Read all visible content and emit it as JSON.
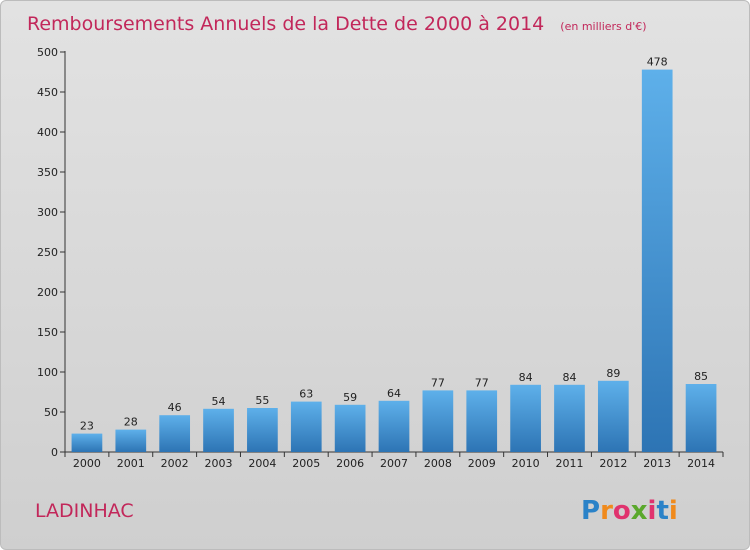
{
  "chart_data": {
    "type": "bar",
    "title": "Remboursements Annuels de la Dette de 2000 à 2014",
    "unit": "(en milliers d'€)",
    "categories": [
      "2000",
      "2001",
      "2002",
      "2003",
      "2004",
      "2005",
      "2006",
      "2007",
      "2008",
      "2009",
      "2010",
      "2011",
      "2012",
      "2013",
      "2014"
    ],
    "values": [
      23,
      28,
      46,
      54,
      55,
      63,
      59,
      64,
      77,
      77,
      84,
      84,
      89,
      478,
      85
    ],
    "ylim": [
      0,
      500
    ],
    "yticks": [
      0,
      50,
      100,
      150,
      200,
      250,
      300,
      350,
      400,
      450,
      500
    ],
    "grid": false,
    "colors": {
      "bar": "#3e8fd6",
      "bar_light": "#5eb0ea",
      "bar_dark": "#2d74b4"
    }
  },
  "commune": "LADINHAC",
  "logo": {
    "text": "Proxiti",
    "letter_colors": [
      "#2a82c8",
      "#f08a1c",
      "#e0336e",
      "#5aa82c",
      "#e0336e",
      "#2a82c8",
      "#f08a1c"
    ]
  }
}
